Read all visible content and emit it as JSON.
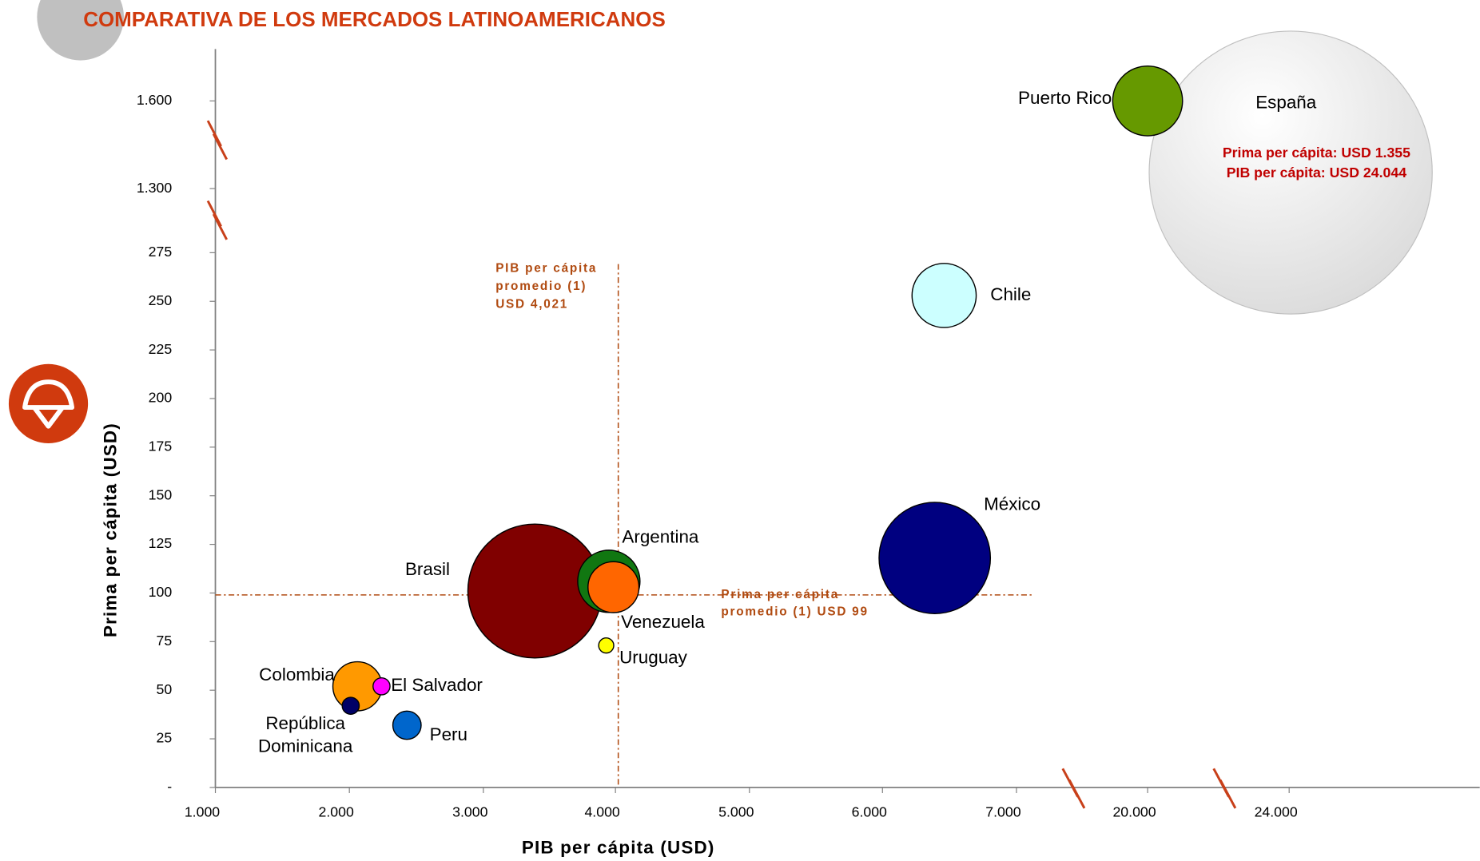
{
  "chart_data": {
    "type": "scatter",
    "title": "COMPARATIVA DE LOS MERCADOS LATINOAMERICANOS",
    "x_label": "PIB per cápita (USD)",
    "y_label": "Prima per cápita (USD)",
    "xlim": [
      1000,
      24044
    ],
    "ylim": [
      0,
      1600
    ],
    "xticks": [
      {
        "value": 1000,
        "label": "1.000"
      },
      {
        "value": 2000,
        "label": "2.000"
      },
      {
        "value": 3000,
        "label": "3.000"
      },
      {
        "value": 4000,
        "label": "4.000"
      },
      {
        "value": 5000,
        "label": "5.000"
      },
      {
        "value": 6000,
        "label": "6.000"
      },
      {
        "value": 7000,
        "label": "7.000"
      },
      {
        "value": 20000,
        "label": "20.000"
      },
      {
        "value": 24000,
        "label": "24.000"
      }
    ],
    "yticks": [
      {
        "value": 0,
        "label": "-"
      },
      25,
      50,
      75,
      100,
      125,
      150,
      175,
      200,
      225,
      250,
      275,
      {
        "value": 1300,
        "label": "1.300"
      },
      {
        "value": 1600,
        "label": "1.600"
      }
    ],
    "series": [
      {
        "name": "España",
        "color": "#e4e4e4",
        "x": [
          24044
        ],
        "values": [
          1355
        ],
        "sizes": [
          150
        ]
      },
      {
        "name": "Puerto Rico",
        "color": "#669900",
        "x": [
          20000
        ],
        "values": [
          1600
        ],
        "sizes": [
          37
        ]
      },
      {
        "name": "Chile",
        "color": "#ccffff",
        "x": [
          6460
        ],
        "values": [
          253
        ],
        "sizes": [
          34
        ]
      },
      {
        "name": "México",
        "color": "#000080",
        "x": [
          6390
        ],
        "values": [
          118
        ],
        "sizes": [
          59
        ]
      },
      {
        "name": "Brasil",
        "color": "#800000",
        "x": [
          3390
        ],
        "values": [
          101
        ],
        "sizes": [
          71
        ]
      },
      {
        "name": "Argentina",
        "color": "#117711",
        "x": [
          3950
        ],
        "values": [
          106
        ],
        "sizes": [
          33
        ]
      },
      {
        "name": "Venezuela",
        "color": "#ff6600",
        "x": [
          3985
        ],
        "values": [
          103
        ],
        "sizes": [
          27
        ]
      },
      {
        "name": "Uruguay",
        "color": "#ffff00",
        "x": [
          3930
        ],
        "values": [
          73
        ],
        "sizes": [
          8
        ]
      },
      {
        "name": "Colombia",
        "color": "#ff9900",
        "x": [
          2060
        ],
        "values": [
          52
        ],
        "sizes": [
          26
        ]
      },
      {
        "name": "El Salvador",
        "color": "#ff00ff",
        "x": [
          2240
        ],
        "values": [
          52
        ],
        "sizes": [
          9
        ]
      },
      {
        "name": "República Dominicana",
        "color": "#000066",
        "x": [
          2010
        ],
        "values": [
          42
        ],
        "sizes": [
          9
        ]
      },
      {
        "name": "Peru",
        "color": "#0066cc",
        "x": [
          2430
        ],
        "values": [
          32
        ],
        "sizes": [
          15
        ]
      }
    ],
    "reference_lines": [
      {
        "axis": "x",
        "value": 4021,
        "label_lines": [
          "PIB per cápita",
          "promedio (1)",
          "USD 4,021"
        ]
      },
      {
        "axis": "y",
        "value": 99,
        "label_lines": [
          "Prima per cápita",
          "promedio (1)  USD 99"
        ]
      }
    ],
    "annotations": [
      "Prima per cápita: USD 1.355",
      "PIB per cápita: USD 24.044"
    ]
  }
}
